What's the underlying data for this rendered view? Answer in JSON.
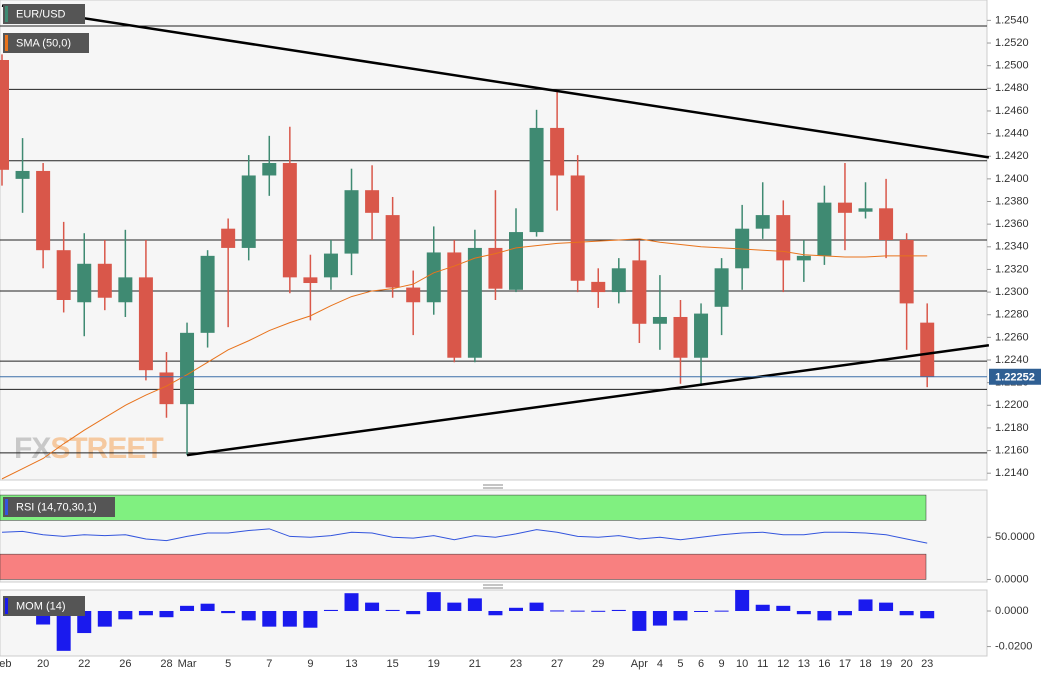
{
  "chart_data": [
    {
      "type": "candlestick",
      "title": "EUR/USD",
      "watermark": [
        "FX",
        "STREET"
      ],
      "categories": [
        "Feb",
        null,
        "20",
        null,
        "22",
        null,
        "26",
        null,
        "28",
        "Mar",
        null,
        "5",
        null,
        "7",
        null,
        "9",
        null,
        "13",
        null,
        "15",
        null,
        "19",
        null,
        "21",
        null,
        "23",
        null,
        "27",
        null,
        "29",
        null,
        "Apr",
        "4",
        "5",
        "6",
        "9",
        "10",
        "11",
        "12",
        "13",
        "16",
        "17",
        "18",
        "19",
        "20",
        "23"
      ],
      "open": [
        1.2505,
        1.24,
        1.2407,
        1.2337,
        1.2291,
        1.2325,
        1.2291,
        1.2313,
        1.2229,
        1.2201,
        1.2264,
        1.2356,
        1.2339,
        1.2403,
        1.2414,
        1.2313,
        1.2313,
        1.2334,
        1.239,
        1.2368,
        1.2304,
        1.2291,
        1.2335,
        1.2242,
        1.2339,
        1.2302,
        1.2353,
        1.2445,
        1.2403,
        1.2309,
        1.23,
        1.2328,
        1.2272,
        1.2278,
        1.2242,
        1.2287,
        1.2321,
        1.2356,
        1.2368,
        1.2328,
        1.2332,
        1.2379,
        1.2371,
        1.2374,
        1.2346,
        1.2273
      ],
      "high": [
        1.251,
        1.2436,
        1.2414,
        1.2362,
        1.2352,
        1.2346,
        1.2355,
        1.2346,
        1.2247,
        1.2273,
        1.2337,
        1.2365,
        1.2421,
        1.2438,
        1.2446,
        1.2333,
        1.2346,
        1.2409,
        1.2412,
        1.2384,
        1.2319,
        1.2358,
        1.2346,
        1.2355,
        1.239,
        1.2374,
        1.2461,
        1.2478,
        1.2421,
        1.2321,
        1.233,
        1.2346,
        1.2315,
        1.2293,
        1.229,
        1.233,
        1.2377,
        1.2397,
        1.2381,
        1.2346,
        1.2394,
        1.2414,
        1.2397,
        1.24,
        1.2352,
        1.229
      ],
      "low": [
        1.2394,
        1.237,
        1.2321,
        1.2282,
        1.2261,
        1.2284,
        1.2278,
        1.2222,
        1.2189,
        1.2156,
        1.2251,
        1.2269,
        1.2328,
        1.2385,
        1.2299,
        1.2275,
        1.2302,
        1.2315,
        1.2346,
        1.2295,
        1.2262,
        1.228,
        1.2238,
        1.2238,
        1.2293,
        1.23,
        1.2349,
        1.2372,
        1.23,
        1.2286,
        1.229,
        1.2255,
        1.2249,
        1.2219,
        1.2217,
        1.2262,
        1.2302,
        1.2347,
        1.23,
        1.2309,
        1.2324,
        1.2337,
        1.2365,
        1.233,
        1.2249,
        1.2216
      ],
      "close": [
        1.2408,
        1.2407,
        1.2337,
        1.2293,
        1.2325,
        1.2295,
        1.2313,
        1.2231,
        1.2201,
        1.2264,
        1.2332,
        1.2339,
        1.2403,
        1.2414,
        1.2313,
        1.2308,
        1.2334,
        1.239,
        1.237,
        1.2304,
        1.2291,
        1.2335,
        1.2242,
        1.2339,
        1.2303,
        1.2353,
        1.2445,
        1.2403,
        1.231,
        1.23,
        1.2321,
        1.2272,
        1.2278,
        1.2242,
        1.2281,
        1.2321,
        1.2356,
        1.2368,
        1.2328,
        1.2332,
        1.2379,
        1.237,
        1.2374,
        1.2346,
        1.229,
        1.22252
      ],
      "up_color": "#3f8a72",
      "down_color": "#d9574a",
      "sma": {
        "name": "SMA (50,0)",
        "color": "#e8731c",
        "values": [
          1.2135,
          1.2144,
          1.2153,
          1.2166,
          1.2178,
          1.2189,
          1.22,
          1.2209,
          1.2217,
          1.2227,
          1.2238,
          1.2249,
          1.2257,
          1.2266,
          1.2273,
          1.2279,
          1.2288,
          1.2296,
          1.2301,
          1.2303,
          1.2307,
          1.2317,
          1.2323,
          1.233,
          1.2334,
          1.2339,
          1.2341,
          1.2343,
          1.2344,
          1.2345,
          1.2346,
          1.2347,
          1.2344,
          1.2342,
          1.234,
          1.2339,
          1.2338,
          1.2337,
          1.2336,
          1.2333,
          1.2332,
          1.2331,
          1.2331,
          1.2332,
          1.2332,
          1.2332
        ]
      },
      "trendlines": [
        {
          "start": [
            0,
            1.2553
          ],
          "end": [
            48,
            1.2419
          ]
        },
        {
          "start": [
            9,
            1.2156
          ],
          "end": [
            48,
            1.2253
          ]
        }
      ],
      "levels": [
        1.2535,
        1.2479,
        1.2416,
        1.2346,
        1.2301,
        1.2239,
        1.2214,
        1.2158
      ],
      "ylim": [
        1.2134,
        1.2558
      ],
      "yticks": [
        {
          "value": 1.214,
          "label": "1.2140"
        },
        {
          "value": 1.216,
          "label": "1.2160"
        },
        {
          "value": 1.218,
          "label": "1.2180"
        },
        {
          "value": 1.22,
          "label": "1.2200"
        },
        {
          "value": 1.222,
          "label": "1.2220"
        },
        {
          "value": 1.224,
          "label": "1.2240"
        },
        {
          "value": 1.226,
          "label": "1.2260"
        },
        {
          "value": 1.228,
          "label": "1.2280"
        },
        {
          "value": 1.23,
          "label": "1.2300"
        },
        {
          "value": 1.232,
          "label": "1.2320"
        },
        {
          "value": 1.234,
          "label": "1.2340"
        },
        {
          "value": 1.236,
          "label": "1.2360"
        },
        {
          "value": 1.238,
          "label": "1.2380"
        },
        {
          "value": 1.24,
          "label": "1.2400"
        },
        {
          "value": 1.242,
          "label": "1.2420"
        },
        {
          "value": 1.244,
          "label": "1.2440"
        },
        {
          "value": 1.246,
          "label": "1.2460"
        },
        {
          "value": 1.248,
          "label": "1.2480"
        },
        {
          "value": 1.25,
          "label": "1.2500"
        },
        {
          "value": 1.252,
          "label": "1.2520"
        },
        {
          "value": 1.254,
          "label": "1.2540"
        }
      ]
    },
    {
      "type": "line",
      "title": "RSI (14,70,30,1)",
      "color": "#3355dd",
      "values": [
        56,
        57,
        53,
        51,
        53,
        52,
        53,
        48,
        46,
        51,
        55,
        55,
        58,
        60,
        51,
        50,
        52,
        56,
        55,
        50,
        49,
        52,
        47,
        52,
        50,
        54,
        59,
        56,
        51,
        50,
        52,
        48,
        50,
        47,
        50,
        53,
        55,
        56,
        53,
        53,
        56,
        56,
        55,
        53,
        48,
        43
      ],
      "bands": [
        {
          "from": 70,
          "to": 100,
          "color": "#80f080"
        },
        {
          "from": 0,
          "to": 30,
          "color": "#f88080"
        }
      ],
      "ylim": [
        -3,
        106
      ],
      "yticks": [
        {
          "value": 0,
          "label": "0.0000"
        },
        {
          "value": 50,
          "label": "50.0000"
        }
      ]
    },
    {
      "type": "bar",
      "title": "MOM (14)",
      "color": "#1a1aee",
      "values": [
        null,
        null,
        -0.0076,
        -0.0224,
        -0.0124,
        -0.0088,
        -0.0047,
        -0.0024,
        -0.0035,
        0.0029,
        0.0041,
        -0.0012,
        -0.0053,
        -0.0088,
        -0.0088,
        -0.0094,
        0.0006,
        0.01,
        0.0047,
        0.0006,
        -0.0018,
        0.0106,
        0.0047,
        0.0071,
        -0.0024,
        0.0018,
        0.0047,
        0.0003,
        0.0002,
        0.0001,
        0.0006,
        -0.0112,
        -0.0082,
        -0.0053,
        -0.0002,
        0.0002,
        0.0118,
        0.0035,
        0.0029,
        -0.0018,
        -0.0053,
        -0.0024,
        0.0065,
        0.0047,
        -0.0024,
        -0.0041
      ],
      "ylim": [
        -0.0253,
        0.0118
      ],
      "yticks": [
        {
          "value": -0.02,
          "label": "-0.0200"
        },
        {
          "value": 0,
          "label": "0.0000"
        }
      ]
    }
  ]
}
